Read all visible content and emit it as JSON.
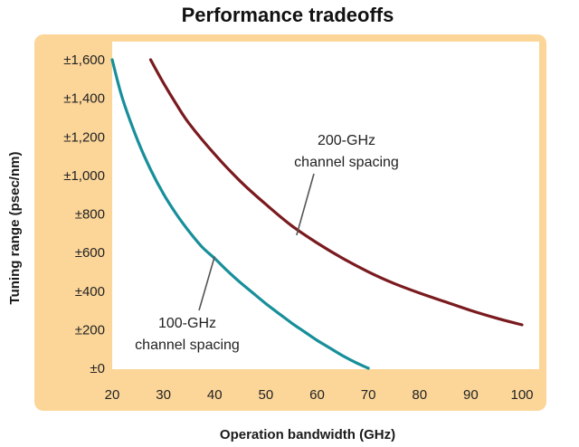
{
  "chart_data": {
    "type": "line",
    "title": "Performance tradeoffs",
    "xlabel": "Operation bandwidth (GHz)",
    "ylabel": "Tuning range (psec/nm)",
    "xlim": [
      20,
      100
    ],
    "ylim": [
      0,
      1600
    ],
    "x_ticks": [
      20,
      30,
      40,
      50,
      60,
      70,
      80,
      90,
      100
    ],
    "x_tick_labels": [
      "20",
      "30",
      "40",
      "50",
      "60",
      "70",
      "80",
      "90",
      "100"
    ],
    "y_ticks": [
      0,
      200,
      400,
      600,
      800,
      1000,
      1200,
      1400,
      1600
    ],
    "y_tick_labels": [
      "±0",
      "±200",
      "±400",
      "±600",
      "±800",
      "±1,000",
      "±1,200",
      "±1,400",
      "±1,600"
    ],
    "grid": false,
    "colors": {
      "panel": "#fcd699",
      "plot_bg": "#ffffff",
      "curve_100": "#178f9a",
      "curve_200": "#7a1a1e",
      "leader": "#555555"
    },
    "series": [
      {
        "key": "curve_100",
        "x": [
          20,
          22,
          25,
          27.5,
          30,
          32.5,
          35,
          37.5,
          40,
          42.5,
          45,
          47.5,
          50,
          52.5,
          55,
          57.5,
          60,
          62.5,
          65,
          67.5,
          70
        ],
        "values": [
          1600,
          1400,
          1180,
          1030,
          905,
          800,
          710,
          630,
          570,
          505,
          445,
          390,
          335,
          285,
          235,
          190,
          145,
          105,
          65,
          30,
          0
        ]
      },
      {
        "key": "curve_200",
        "x": [
          27.5,
          30,
          32.5,
          35,
          40,
          45,
          50,
          55,
          60,
          65,
          70,
          75,
          80,
          85,
          90,
          95,
          100
        ],
        "values": [
          1600,
          1480,
          1370,
          1270,
          1110,
          970,
          850,
          740,
          650,
          570,
          500,
          440,
          390,
          345,
          300,
          260,
          225
        ]
      }
    ],
    "annotations": [
      {
        "lines": [
          "200-GHz",
          "channel spacing"
        ],
        "points_to_x": 56,
        "points_to_y": 690
      },
      {
        "lines": [
          "100-GHz",
          "channel spacing"
        ],
        "points_to_x": 40,
        "points_to_y": 580
      }
    ]
  }
}
